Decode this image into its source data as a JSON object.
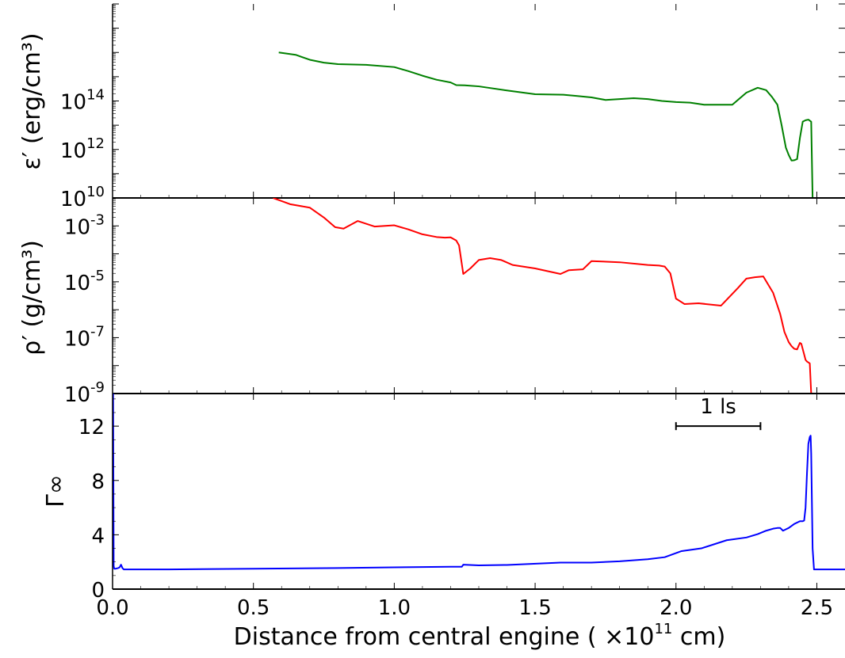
{
  "chart_data": [
    {
      "type": "line",
      "panel": "top",
      "ylabel": "ε′ (erg/cm³)",
      "yscale": "log",
      "ylim": [
        10000000000.0,
        1e+18
      ],
      "ytick_labels": [
        {
          "value": 10000000000.0,
          "base": "10",
          "exp": "10"
        },
        {
          "value": 1000000000000.0,
          "base": "10",
          "exp": "12"
        },
        {
          "value": 100000000000000.0,
          "base": "10",
          "exp": "14"
        }
      ],
      "color": "#008000",
      "series": [
        {
          "x": [
            0.59,
            0.65,
            0.7,
            0.75,
            0.8,
            0.9,
            1.0,
            1.05,
            1.1,
            1.15,
            1.2,
            1.22,
            1.25,
            1.3,
            1.4,
            1.5,
            1.6,
            1.65,
            1.7,
            1.75,
            1.85,
            1.9,
            1.95,
            2.0,
            2.05,
            2.1,
            2.15,
            2.2,
            2.25,
            2.29,
            2.32,
            2.34,
            2.36,
            2.375,
            2.39,
            2.4,
            2.41,
            2.42,
            2.43,
            2.44,
            2.45,
            2.46,
            2.47,
            2.48,
            2.485,
            2.49
          ],
          "y": [
            1e+16,
            8000000000000000.0,
            5000000000000000.0,
            3800000000000000.0,
            3300000000000000.0,
            3100000000000000.0,
            2500000000000000.0,
            1700000000000000.0,
            1100000000000000.0,
            750000000000000.0,
            580000000000000.0,
            450000000000000.0,
            440000000000000.0,
            400000000000000.0,
            270000000000000.0,
            190000000000000.0,
            180000000000000.0,
            160000000000000.0,
            140000000000000.0,
            110000000000000.0,
            130000000000000.0,
            120000000000000.0,
            100000000000000.0,
            90000000000000.0,
            85000000000000.0,
            70000000000000.0,
            70000000000000.0,
            70000000000000.0,
            220000000000000.0,
            350000000000000.0,
            280000000000000.0,
            150000000000000.0,
            70000000000000.0,
            10000000000000.0,
            1200000000000.0,
            600000000000.0,
            350000000000.0,
            360000000000.0,
            400000000000.0,
            3000000000000.0,
            14000000000000.0,
            16000000000000.0,
            17000000000000.0,
            14000000000000.0,
            10000000000.0,
            10000000000.0
          ]
        }
      ]
    },
    {
      "type": "line",
      "panel": "middle",
      "ylabel": "ρ′ (g/cm³)",
      "yscale": "log",
      "ylim": [
        1e-09,
        0.01
      ],
      "ytick_labels": [
        {
          "value": 1e-09,
          "base": "10",
          "exp": "-9"
        },
        {
          "value": 1e-07,
          "base": "10",
          "exp": "-7"
        },
        {
          "value": 1e-05,
          "base": "10",
          "exp": "-5"
        },
        {
          "value": 0.001,
          "base": "10",
          "exp": "-3"
        }
      ],
      "color": "#ff0000",
      "series": [
        {
          "x": [
            0.57,
            0.63,
            0.7,
            0.75,
            0.79,
            0.82,
            0.87,
            0.93,
            1.0,
            1.05,
            1.1,
            1.15,
            1.18,
            1.2,
            1.22,
            1.23,
            1.245,
            1.27,
            1.3,
            1.34,
            1.38,
            1.42,
            1.5,
            1.59,
            1.62,
            1.67,
            1.7,
            1.8,
            1.9,
            1.94,
            1.96,
            1.98,
            2.0,
            2.03,
            2.08,
            2.16,
            2.22,
            2.25,
            2.28,
            2.31,
            2.345,
            2.37,
            2.385,
            2.4,
            2.41,
            2.42,
            2.43,
            2.435,
            2.44,
            2.445,
            2.455,
            2.46,
            2.465,
            2.475,
            2.48,
            2.485,
            2.49
          ],
          "y": [
            0.01,
            0.006,
            0.0045,
            0.002,
            0.0009,
            0.0008,
            0.0015,
            0.00095,
            0.00105,
            0.00075,
            0.0005,
            0.0004,
            0.00038,
            0.00039,
            0.0003,
            0.0002,
            1.9e-05,
            3e-05,
            6e-05,
            7e-05,
            6e-05,
            4e-05,
            3e-05,
            1.9e-05,
            2.6e-05,
            2.8e-05,
            5.5e-05,
            5e-05,
            4e-05,
            3.8e-05,
            3.5e-05,
            2e-05,
            2.5e-06,
            1.6e-06,
            1.7e-06,
            1.4e-06,
            6e-06,
            1.3e-05,
            1.45e-05,
            1.55e-05,
            4e-06,
            7e-07,
            1.6e-07,
            7e-08,
            5e-08,
            4e-08,
            3.8e-08,
            5e-08,
            6.5e-08,
            6e-08,
            2.5e-08,
            1.6e-08,
            1.4e-08,
            1.2e-08,
            1e-09,
            1e-09,
            1e-09
          ]
        },
        {
          "x": [
            2.49,
            2.6
          ],
          "y": [
            1e-09,
            1e-09
          ]
        }
      ]
    },
    {
      "type": "line",
      "panel": "bottom",
      "ylabel": "Γ∞",
      "yscale": "linear",
      "ylim": [
        0,
        14.4
      ],
      "yticks": [
        0,
        4,
        8,
        12
      ],
      "xlim": [
        0,
        2.6
      ],
      "xticks": [
        0.0,
        0.5,
        1.0,
        1.5,
        2.0,
        2.5
      ],
      "xtick_labels": [
        "0.0",
        "0.5",
        "1.0",
        "1.5",
        "2.0",
        "2.5"
      ],
      "color": "#0000ff",
      "annotation": {
        "text": "1 ls",
        "x_start": 2.0,
        "x_end": 2.3,
        "y": 12
      },
      "series": [
        {
          "x": [
            0.0,
            0.002,
            0.004,
            0.006,
            0.01,
            0.02,
            0.025,
            0.03,
            0.035,
            0.04,
            0.05,
            0.2,
            0.5,
            0.8,
            1.0,
            1.2,
            1.24,
            1.245,
            1.3,
            1.4,
            1.59,
            1.7,
            1.8,
            1.9,
            1.96,
            2.02,
            2.09,
            2.18,
            2.25,
            2.29,
            2.32,
            2.345,
            2.36,
            2.37,
            2.38,
            2.39,
            2.4,
            2.42,
            2.44,
            2.45,
            2.455,
            2.46,
            2.465,
            2.47,
            2.475,
            2.478,
            2.48,
            2.485,
            2.49,
            2.495,
            2.6
          ],
          "y": [
            1.7,
            14.4,
            1.7,
            1.5,
            1.5,
            1.55,
            1.6,
            1.8,
            1.55,
            1.45,
            1.45,
            1.45,
            1.5,
            1.55,
            1.6,
            1.65,
            1.65,
            1.8,
            1.75,
            1.78,
            1.95,
            1.95,
            2.05,
            2.2,
            2.35,
            2.8,
            3.0,
            3.6,
            3.8,
            4.05,
            4.3,
            4.45,
            4.5,
            4.5,
            4.3,
            4.4,
            4.5,
            4.8,
            5.0,
            5.0,
            5.05,
            6.0,
            8.5,
            10.7,
            11.2,
            11.3,
            10.0,
            3.0,
            1.45,
            1.45,
            1.45
          ]
        }
      ]
    }
  ],
  "xlabel": {
    "prefix": "Distance from central engine ( ",
    "times": "×10",
    "exp": "11",
    "suffix": "  cm)"
  }
}
